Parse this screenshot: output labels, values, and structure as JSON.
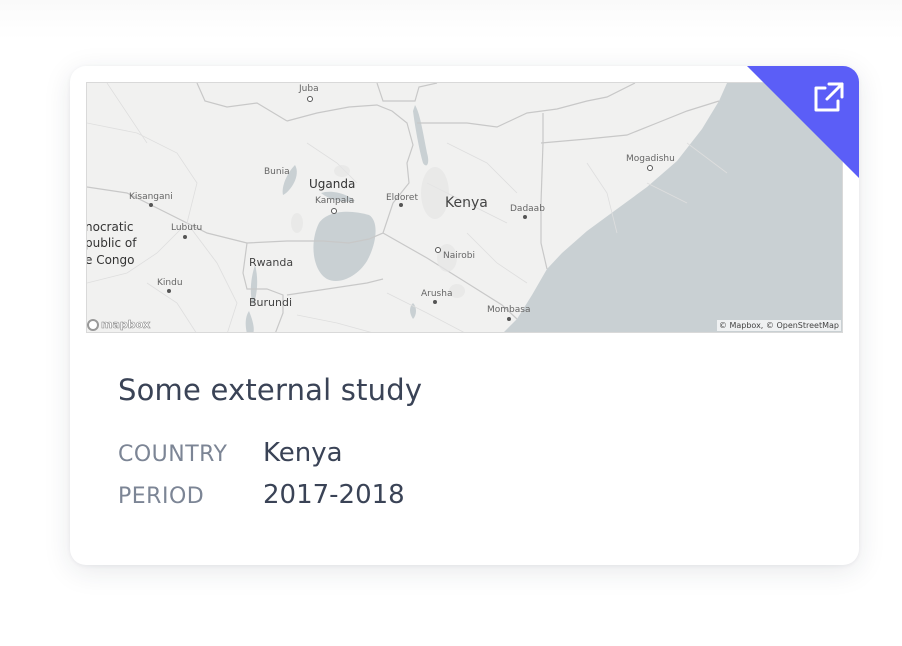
{
  "card": {
    "title": "Some external study",
    "fields": [
      {
        "label": "COUNTRY",
        "value": "Kenya"
      },
      {
        "label": "PERIOD",
        "value": "2017-2018"
      }
    ]
  },
  "map": {
    "labels": {
      "juba": "Juba",
      "bunia": "Bunia",
      "uganda": "Uganda",
      "kampala": "Kampala",
      "eldoret": "Eldoret",
      "kenya": "Kenya",
      "dadaab": "Dadaab",
      "mogadishu": "Mogadishu",
      "kisangani": "Kisangani",
      "lubutu": "Lubutu",
      "drc1": "nocratic",
      "drc2": "public of",
      "drc3": "e Congo",
      "rwanda": "Rwanda",
      "nairobi": "Nairobi",
      "kindu": "Kindu",
      "burundi": "Burundi",
      "arusha": "Arusha",
      "mombasa": "Mombasa"
    },
    "attribution": "© Mapbox, © OpenStreetMap",
    "logo": "mapbox"
  },
  "colors": {
    "accent": "#5b5ef7",
    "land": "#f1f1f0",
    "water": "#c9d0d3",
    "title": "#3a4356",
    "label": "#7c8595"
  },
  "icons": {
    "external_link": "external-link-icon"
  }
}
